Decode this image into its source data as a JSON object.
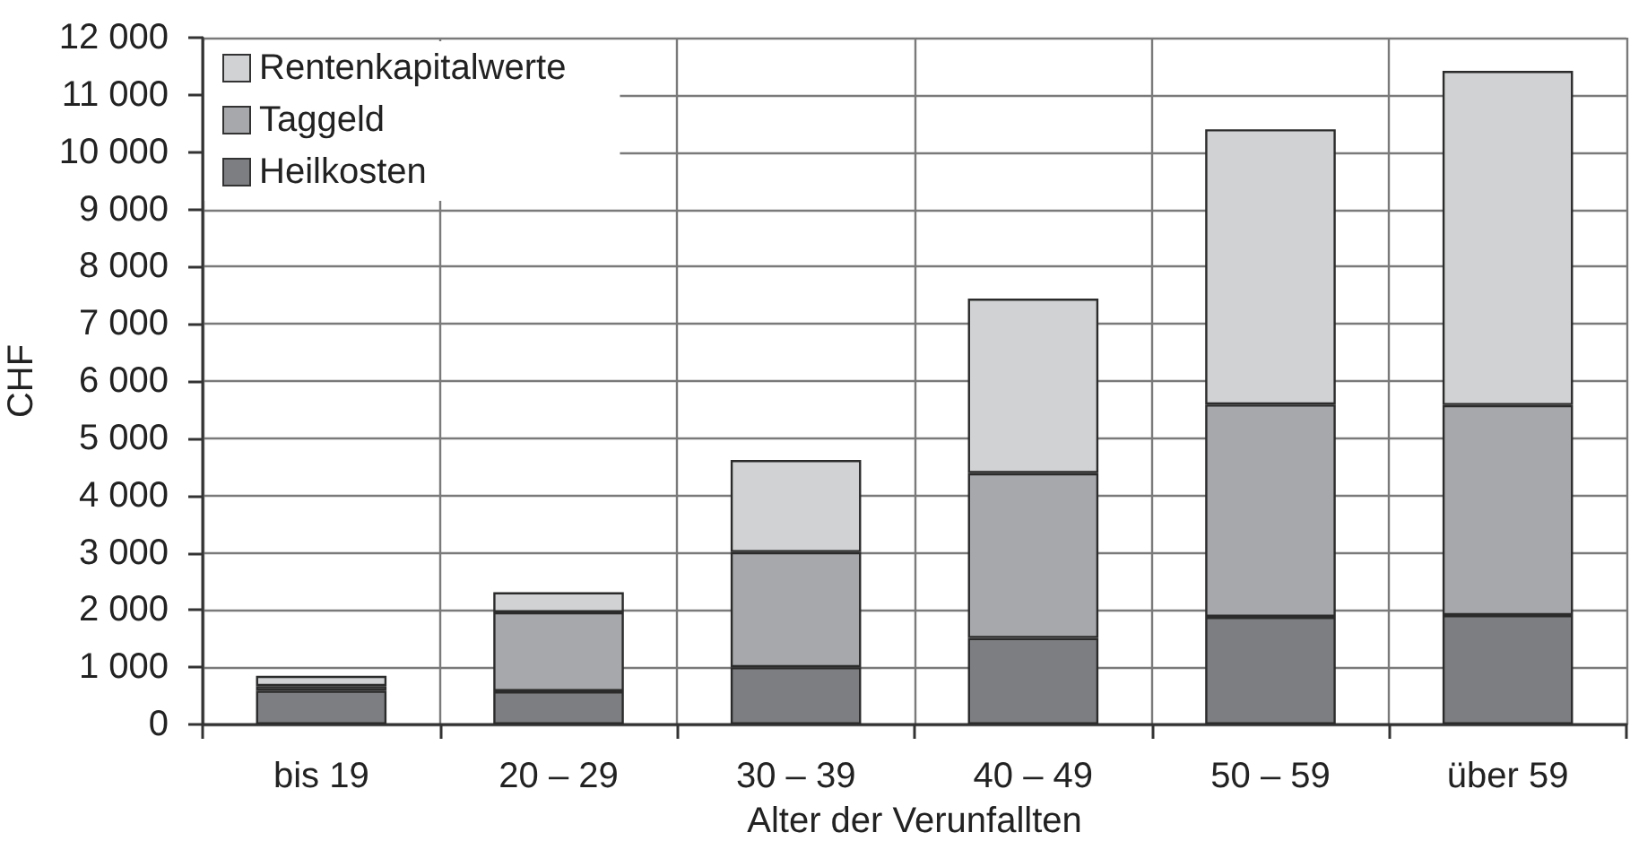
{
  "chart_data": {
    "type": "bar",
    "stacked": true,
    "xlabel": "Alter der Verunfallten",
    "ylabel": "CHF",
    "categories": [
      "bis 19",
      "20 – 29",
      "30 – 39",
      "40 – 49",
      "50 – 59",
      "über 59"
    ],
    "series": [
      {
        "name": "Heilkosten",
        "color": "#7d7e81",
        "values": [
          590,
          580,
          1000,
          1510,
          1880,
          1910
        ]
      },
      {
        "name": "Taggeld",
        "color": "#a7a8ab",
        "values": [
          80,
          1380,
          2010,
          2880,
          3710,
          3670
        ]
      },
      {
        "name": "Rentenkapitalwerte",
        "color": "#d1d2d4",
        "values": [
          180,
          350,
          1610,
          3050,
          4810,
          5840
        ]
      }
    ],
    "ylim": [
      0,
      12000
    ],
    "yticks": [
      0,
      {
        "value": 1000,
        "label": "1 000"
      },
      {
        "value": 2000,
        "label": "2 000"
      },
      {
        "value": 3000,
        "label": "3 000"
      },
      {
        "value": 4000,
        "label": "4 000"
      },
      {
        "value": 5000,
        "label": "5 000"
      },
      {
        "value": 6000,
        "label": "6 000"
      },
      {
        "value": 7000,
        "label": "7 000"
      },
      {
        "value": 8000,
        "label": "8 000"
      },
      {
        "value": 9000,
        "label": "9 000"
      },
      {
        "value": 10000,
        "label": "10 000"
      },
      {
        "value": 11000,
        "label": "11 000"
      },
      {
        "value": 12000,
        "label": "12 000"
      }
    ],
    "grid": true,
    "legend": "top left"
  }
}
